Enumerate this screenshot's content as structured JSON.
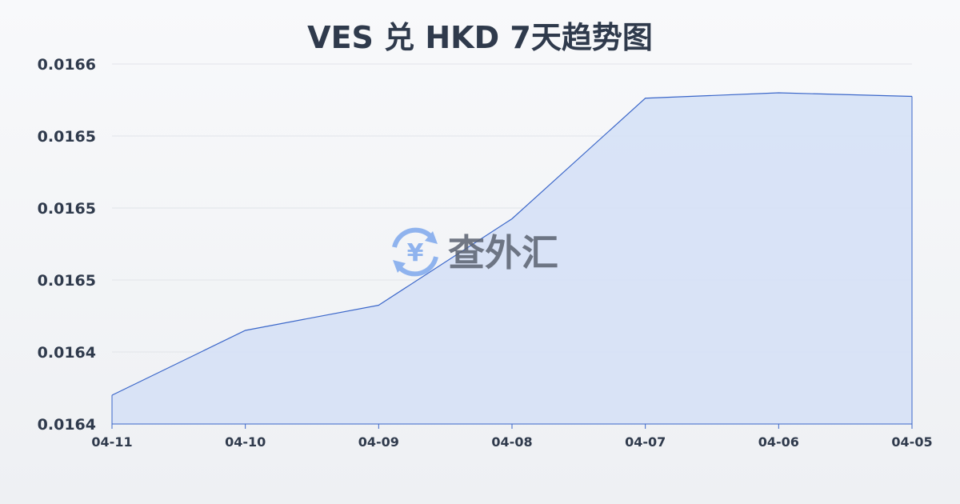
{
  "chart_data": {
    "type": "area",
    "title": "VES 兑 HKD 7天趋势图",
    "categories": [
      "04-11",
      "04-10",
      "04-09",
      "04-08",
      "04-07",
      "04-06",
      "04-05"
    ],
    "values": [
      0.016416,
      0.016452,
      0.016466,
      0.016514,
      0.016581,
      0.016584,
      0.016582
    ],
    "ylim": [
      0.0164,
      0.0166
    ],
    "yticks": [
      0.0164,
      0.01644,
      0.01648,
      0.01652,
      0.01656,
      0.0166
    ],
    "ytick_labels": [
      "0.0164",
      "0.0164",
      "0.0165",
      "0.0165",
      "0.0165",
      "0.0166"
    ],
    "xlabel": "",
    "ylabel": "",
    "grid": true,
    "line_color": "#3a66c9",
    "fill_color": "#d6e1f6"
  },
  "watermark": {
    "text": "查外汇",
    "icon": "yen-exchange-icon"
  }
}
